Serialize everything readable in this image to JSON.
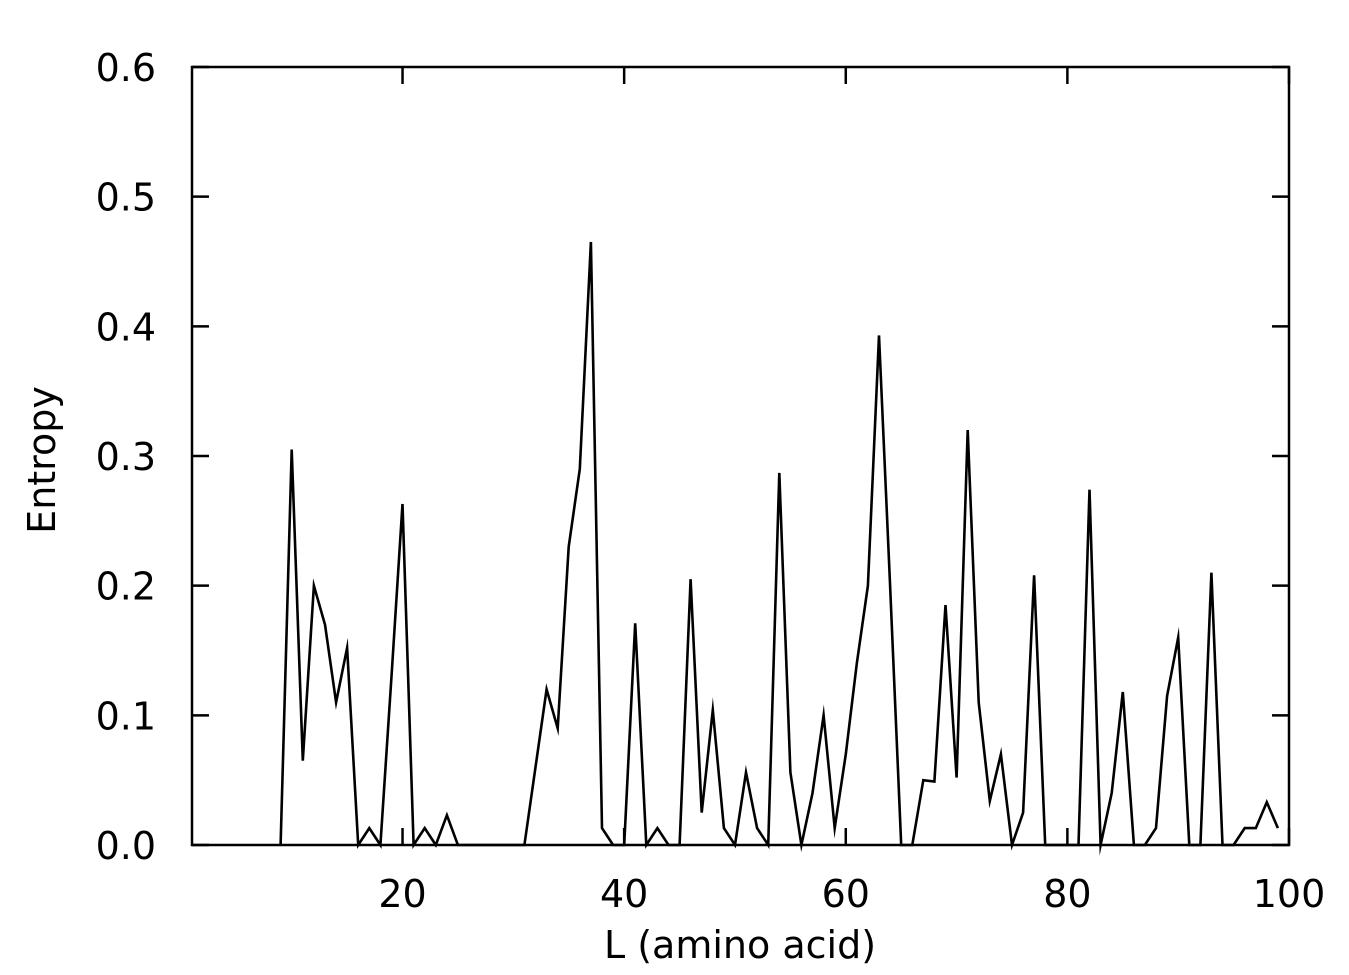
{
  "chart_data": {
    "type": "line",
    "title": "",
    "xlabel": "L (amino acid)",
    "ylabel": "Entropy",
    "xlim": [
      1,
      100
    ],
    "ylim": [
      0,
      0.6
    ],
    "xticks": [
      20,
      40,
      60,
      80,
      100
    ],
    "xtick_labels": [
      "20",
      "40",
      "60",
      "80",
      "100"
    ],
    "yticks": [
      0.0,
      0.1,
      0.2,
      0.3,
      0.4,
      0.5,
      0.6
    ],
    "ytick_labels": [
      "0.0",
      "0.1",
      "0.2",
      "0.3",
      "0.4",
      "0.5",
      "0.6"
    ],
    "grid": false,
    "line_color": "#000000",
    "series": [
      {
        "x": [
          9,
          10,
          11,
          12,
          13,
          14,
          15,
          16,
          17,
          18,
          19,
          20,
          21,
          22,
          23,
          24,
          25,
          26,
          27,
          28,
          29,
          30,
          31,
          32,
          33,
          34,
          35,
          36,
          37,
          38,
          39,
          40,
          41,
          42,
          43,
          44,
          45,
          46,
          47,
          48,
          49,
          50,
          51,
          52,
          53,
          54,
          55,
          56,
          57,
          58,
          59,
          60,
          61,
          62,
          63,
          64,
          65,
          66,
          67,
          68,
          69,
          70,
          71,
          72,
          73,
          74,
          75,
          76,
          77,
          78,
          79,
          80,
          81,
          82,
          83,
          84,
          85,
          86,
          87,
          88,
          89,
          90,
          91,
          92,
          93,
          94,
          95,
          96,
          97,
          98,
          99
        ],
        "y": [
          0.0,
          0.305,
          0.065,
          0.2,
          0.17,
          0.11,
          0.152,
          0.0,
          0.013,
          0.0,
          0.13,
          0.263,
          0.0,
          0.013,
          0.0,
          0.023,
          0.0,
          0.0,
          0.0,
          0.0,
          0.0,
          0.0,
          0.0,
          0.06,
          0.12,
          0.09,
          0.23,
          0.29,
          0.465,
          0.013,
          0.0,
          0.0,
          0.171,
          0.0,
          0.013,
          0.0,
          0.0,
          0.205,
          0.025,
          0.104,
          0.013,
          0.0,
          0.056,
          0.013,
          0.0,
          0.287,
          0.056,
          0.0,
          0.04,
          0.1,
          0.013,
          0.07,
          0.14,
          0.2,
          0.393,
          0.2,
          0.0,
          0.0,
          0.05,
          0.049,
          0.185,
          0.052,
          0.32,
          0.11,
          0.034,
          0.07,
          0.0,
          0.025,
          0.208,
          0.0,
          0.0,
          0.0,
          0.0,
          0.274,
          0.0,
          0.04,
          0.118,
          0.0,
          0.0,
          0.013,
          0.115,
          0.16,
          0.0,
          0.0,
          0.21,
          0.0,
          0.0,
          0.013,
          0.013,
          0.033,
          0.013
        ]
      }
    ]
  }
}
